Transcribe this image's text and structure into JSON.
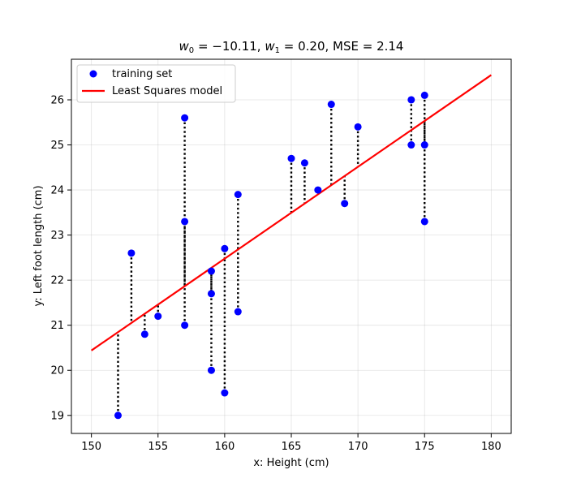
{
  "chart_data": {
    "type": "scatter",
    "title": {
      "w0_label": "w",
      "w0_sub": "0",
      "w0_value": " = −10.11, ",
      "w1_label": "w",
      "w1_sub": "1",
      "w1_value": " = 0.20, MSE = 2.14"
    },
    "xlabel": "x: Height (cm)",
    "ylabel": "y: Left foot length (cm)",
    "xlim": [
      148.5,
      181.5
    ],
    "ylim": [
      18.6,
      26.9
    ],
    "xticks": [
      150,
      155,
      160,
      165,
      170,
      175,
      180
    ],
    "yticks": [
      19,
      20,
      21,
      22,
      23,
      24,
      25,
      26
    ],
    "grid": true,
    "legend_position": "top-left",
    "series": [
      {
        "name": "training set",
        "color": "#0000ff",
        "points": [
          [
            152,
            19.0
          ],
          [
            153,
            22.6
          ],
          [
            154,
            20.8
          ],
          [
            155,
            21.2
          ],
          [
            157,
            25.6
          ],
          [
            157,
            23.3
          ],
          [
            157,
            21.0
          ],
          [
            159,
            22.2
          ],
          [
            159,
            21.7
          ],
          [
            159,
            20.0
          ],
          [
            160,
            22.7
          ],
          [
            160,
            19.5
          ],
          [
            161,
            23.9
          ],
          [
            161,
            21.3
          ],
          [
            165,
            24.7
          ],
          [
            166,
            24.6
          ],
          [
            167,
            24.0
          ],
          [
            168,
            25.9
          ],
          [
            169,
            23.7
          ],
          [
            170,
            25.4
          ],
          [
            174,
            26.0
          ],
          [
            174,
            25.0
          ],
          [
            175,
            26.1
          ],
          [
            175,
            25.0
          ],
          [
            175,
            23.3
          ]
        ]
      },
      {
        "name": "Least Squares model",
        "color": "#ff0000",
        "line": {
          "x": [
            150,
            180
          ],
          "y": [
            20.44,
            26.55
          ]
        }
      }
    ]
  }
}
